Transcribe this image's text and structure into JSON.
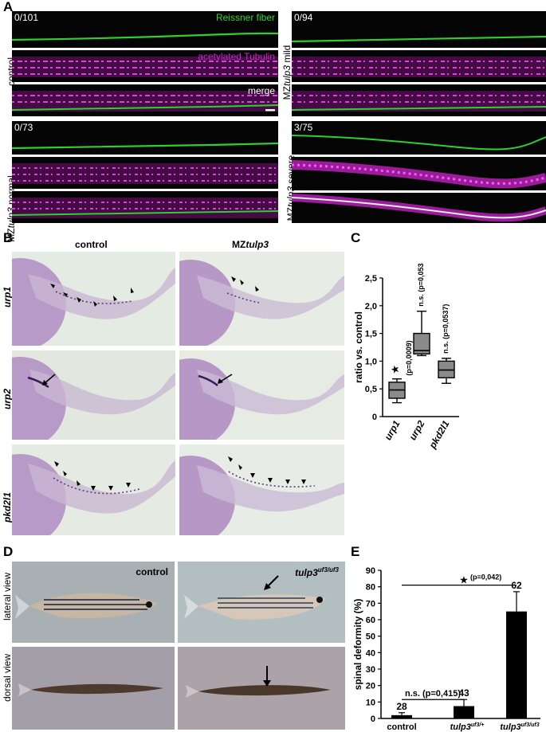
{
  "panel_labels": {
    "A": "A",
    "B": "B",
    "C": "C",
    "D": "D",
    "E": "E"
  },
  "panel_a": {
    "counts": {
      "control": "0/101",
      "mild": "0/94",
      "normal": "0/73",
      "severe": "3/75"
    },
    "channels": {
      "reissner": "Reissner fiber",
      "tubulin": "acetylated Tubulin",
      "merge": "merge"
    },
    "side_labels": {
      "control": "control",
      "mild_pre": "MZ",
      "mild_gene": "tulp3",
      "mild_post": " mild",
      "normal_pre": "MZ",
      "normal_gene": "tulp3",
      "normal_post": " normal",
      "severe_pre": "MZ",
      "severe_gene": "tulp3",
      "severe_post": " severe"
    },
    "colors": {
      "green": "#38d038",
      "magenta": "#d020d0"
    }
  },
  "panel_b": {
    "columns": {
      "control": "control",
      "mz_pre": "MZ",
      "mz_gene": "tulp3"
    },
    "genes": [
      "urp1",
      "urp2",
      "pkd2l1"
    ]
  },
  "chart_data": [
    {
      "type": "boxplot",
      "panel": "C",
      "ylabel": "ratio vs. control",
      "ylim": [
        0,
        2.5
      ],
      "yticks": [
        "0",
        "0,5",
        "1,0",
        "1,5",
        "2,0",
        "2,5"
      ],
      "categories": [
        "urp1",
        "urp2",
        "pkd2l1"
      ],
      "boxes": [
        {
          "name": "urp1",
          "min": 0.25,
          "q1": 0.33,
          "median": 0.48,
          "q3": 0.62,
          "max": 0.68,
          "annotation": "(p=0,0009)",
          "marker": "★"
        },
        {
          "name": "urp2",
          "min": 1.1,
          "q1": 1.13,
          "median": 1.19,
          "q3": 1.5,
          "max": 1.9,
          "annotation": "n.s. (p=0,0533)"
        },
        {
          "name": "pkd2l1",
          "min": 0.6,
          "q1": 0.7,
          "median": 0.84,
          "q3": 1.0,
          "max": 1.05,
          "annotation": "n.s. (p=0,0537)"
        }
      ]
    },
    {
      "type": "bar",
      "panel": "E",
      "ylabel": "spinal deformity (%)",
      "ylim": [
        0,
        90
      ],
      "yticks": [
        "0",
        "10",
        "20",
        "30",
        "40",
        "50",
        "60",
        "70",
        "80",
        "90"
      ],
      "categories": [
        "control",
        "tulp3uf3/+",
        "tulp3uf3/uf3"
      ],
      "category_parts": [
        [
          "control",
          ""
        ],
        [
          "tulp3",
          "uf3/+"
        ],
        [
          "tulp3",
          "uf3/uf3"
        ]
      ],
      "values": [
        2,
        7.5,
        65
      ],
      "errors": [
        1.5,
        4,
        12
      ],
      "n_labels": [
        "28",
        "43",
        "62"
      ],
      "sig_labels": {
        "ns": "n.s. (p=0,415)",
        "star": "★",
        "star_p": "(p=0,042)"
      }
    }
  ],
  "panel_d": {
    "views": {
      "lateral": "lateral view",
      "dorsal": "dorsal view"
    },
    "columns": {
      "control": "control",
      "mut_gene": "tulp3",
      "mut_sup": "uf3/uf3"
    }
  }
}
